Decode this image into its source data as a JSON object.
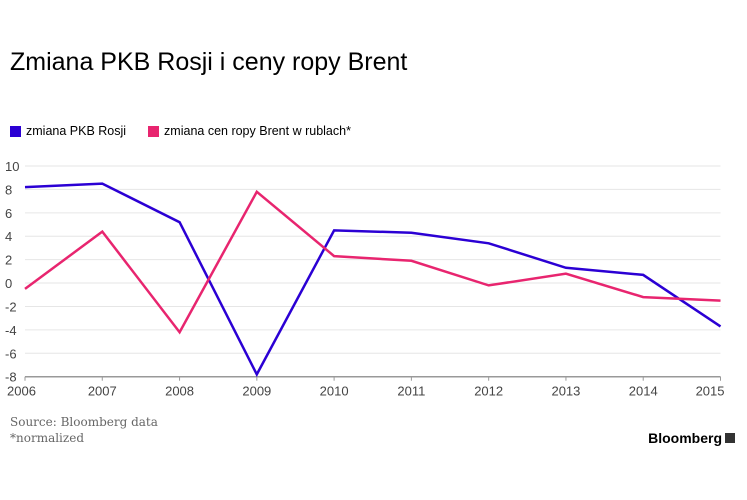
{
  "chart_data": {
    "type": "line",
    "title": "Zmiana PKB Rosji i ceny ropy Brent",
    "xlabel": "",
    "ylabel": "",
    "x": [
      2006,
      2007,
      2008,
      2009,
      2010,
      2011,
      2012,
      2013,
      2014,
      2015
    ],
    "x_ticks": [
      "2006",
      "2007",
      "2008",
      "2009",
      "2010",
      "2011",
      "2012",
      "2013",
      "2014",
      "2015"
    ],
    "y_ticks": [
      "10",
      "8",
      "6",
      "4",
      "2",
      "0",
      "-2",
      "-4",
      "-6",
      "-8"
    ],
    "y_tick_values": [
      10,
      8,
      6,
      4,
      2,
      0,
      -2,
      -4,
      -6,
      -8
    ],
    "ylim": [
      -8,
      10
    ],
    "grid": true,
    "legend_position": "top-left",
    "series": [
      {
        "name": "zmiana PKB Rosji",
        "color": "#2b00d4",
        "values": [
          8.2,
          8.5,
          5.2,
          -7.8,
          4.5,
          4.3,
          3.4,
          1.3,
          0.7,
          -3.7
        ]
      },
      {
        "name": "zmiana cen ropy Brent w rublach*",
        "color": "#e8256f",
        "values": [
          -0.5,
          4.4,
          -4.2,
          7.8,
          2.3,
          1.9,
          -0.2,
          0.8,
          -1.2,
          -1.5
        ]
      }
    ]
  },
  "footer": {
    "source": "Source: Bloomberg data",
    "note": "*normalized",
    "brand": "Bloomberg"
  }
}
